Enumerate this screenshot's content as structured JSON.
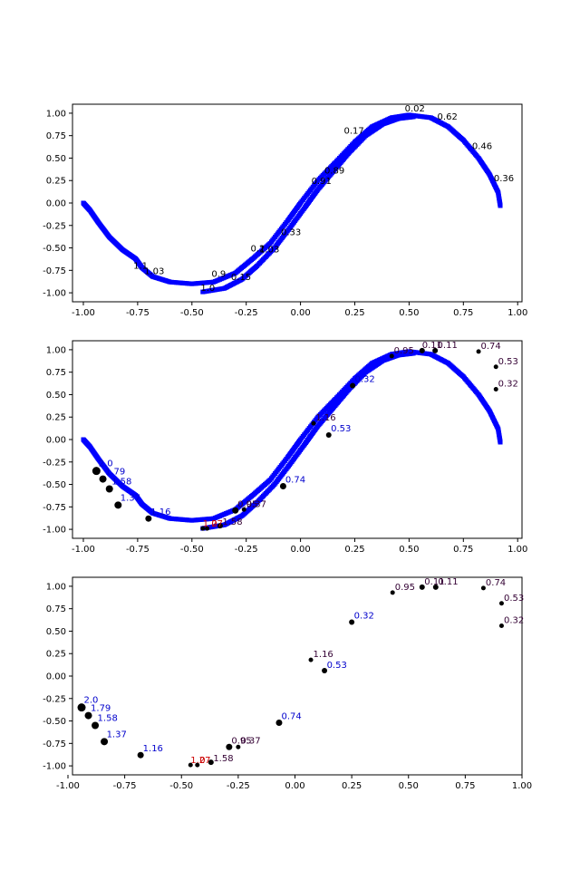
{
  "colors": {
    "curve": "#0000ff",
    "point": "#000000",
    "label_blue": "#0000cc",
    "label_dark": "#330033",
    "label_red": "#cc0000"
  },
  "chart_data": [
    {
      "type": "scatter",
      "xlim": [
        -1.05,
        1.02
      ],
      "ylim": [
        -1.1,
        1.1
      ],
      "xticks": [
        "-1.00",
        "-0.75",
        "-0.50",
        "-0.25",
        "0.00",
        "0.25",
        "0.50",
        "0.75",
        "1.00"
      ],
      "yticks": [
        "-1.00",
        "-0.75",
        "-0.50",
        "-0.25",
        "0.00",
        "0.25",
        "0.50",
        "0.75",
        "1.00"
      ],
      "curve_trace": [
        [
          -1.0,
          0.0
        ],
        [
          -0.97,
          -0.08
        ],
        [
          -0.93,
          -0.22
        ],
        [
          -0.88,
          -0.38
        ],
        [
          -0.82,
          -0.52
        ],
        [
          -0.76,
          -0.62
        ],
        [
          -0.73,
          -0.72
        ],
        [
          -0.68,
          -0.82
        ],
        [
          -0.6,
          -0.88
        ],
        [
          -0.5,
          -0.9
        ],
        [
          -0.4,
          -0.88
        ],
        [
          -0.3,
          -0.78
        ],
        [
          -0.22,
          -0.62
        ],
        [
          -0.14,
          -0.45
        ],
        [
          -0.06,
          -0.2
        ],
        [
          0.0,
          0.0
        ],
        [
          0.08,
          0.25
        ],
        [
          0.16,
          0.45
        ],
        [
          0.25,
          0.68
        ],
        [
          0.33,
          0.85
        ],
        [
          0.42,
          0.95
        ],
        [
          0.5,
          0.98
        ],
        [
          0.6,
          0.95
        ],
        [
          0.68,
          0.85
        ],
        [
          0.75,
          0.7
        ],
        [
          0.82,
          0.5
        ],
        [
          0.87,
          0.32
        ],
        [
          0.91,
          0.12
        ],
        [
          0.92,
          -0.03
        ]
      ],
      "curve_trace_inner": [
        [
          -0.45,
          -0.99
        ],
        [
          -0.35,
          -0.95
        ],
        [
          -0.27,
          -0.85
        ],
        [
          -0.2,
          -0.7
        ],
        [
          -0.12,
          -0.5
        ],
        [
          -0.05,
          -0.28
        ],
        [
          0.02,
          -0.05
        ],
        [
          0.08,
          0.15
        ],
        [
          0.15,
          0.35
        ],
        [
          0.22,
          0.55
        ],
        [
          0.3,
          0.75
        ],
        [
          0.38,
          0.88
        ],
        [
          0.45,
          0.94
        ],
        [
          0.52,
          0.96
        ]
      ],
      "points": [],
      "labels": [
        {
          "x": 0.48,
          "y": 1.02,
          "text": "0.02",
          "color": "#000000"
        },
        {
          "x": 0.63,
          "y": 0.93,
          "text": "0.62",
          "color": "#000000"
        },
        {
          "x": 0.2,
          "y": 0.77,
          "text": "0.17",
          "color": "#000000"
        },
        {
          "x": 0.79,
          "y": 0.6,
          "text": "0.46",
          "color": "#000000"
        },
        {
          "x": 0.11,
          "y": 0.33,
          "text": "0.89",
          "color": "#000000"
        },
        {
          "x": 0.05,
          "y": 0.21,
          "text": "0.91",
          "color": "#000000"
        },
        {
          "x": 0.89,
          "y": 0.24,
          "text": "0.36",
          "color": "#000000"
        },
        {
          "x": -0.09,
          "y": -0.36,
          "text": "0.33",
          "color": "#000000"
        },
        {
          "x": -0.23,
          "y": -0.54,
          "text": "0.2",
          "color": "#000000"
        },
        {
          "x": -0.19,
          "y": -0.55,
          "text": "1.03",
          "color": "#000000"
        },
        {
          "x": -0.77,
          "y": -0.73,
          "text": "1.1",
          "color": "#000000"
        },
        {
          "x": -0.72,
          "y": -0.79,
          "text": "1.03",
          "color": "#000000"
        },
        {
          "x": -0.41,
          "y": -0.82,
          "text": "0.9",
          "color": "#000000"
        },
        {
          "x": -0.32,
          "y": -0.86,
          "text": "0.15",
          "color": "#000000"
        },
        {
          "x": -0.46,
          "y": -0.98,
          "text": "1.0",
          "color": "#000000"
        }
      ]
    },
    {
      "type": "scatter",
      "xlim": [
        -1.05,
        1.02
      ],
      "ylim": [
        -1.1,
        1.1
      ],
      "xticks": [
        "-1.00",
        "-0.75",
        "-0.50",
        "-0.25",
        "0.00",
        "0.25",
        "0.50",
        "0.75",
        "1.00"
      ],
      "yticks": [
        "-1.00",
        "-0.75",
        "-0.50",
        "-0.25",
        "0.00",
        "0.25",
        "0.50",
        "0.75",
        "1.00"
      ],
      "curve_trace": [
        [
          -1.0,
          0.0
        ],
        [
          -0.97,
          -0.08
        ],
        [
          -0.93,
          -0.22
        ],
        [
          -0.88,
          -0.38
        ],
        [
          -0.82,
          -0.52
        ],
        [
          -0.76,
          -0.62
        ],
        [
          -0.73,
          -0.72
        ],
        [
          -0.68,
          -0.82
        ],
        [
          -0.6,
          -0.88
        ],
        [
          -0.5,
          -0.9
        ],
        [
          -0.4,
          -0.88
        ],
        [
          -0.3,
          -0.78
        ],
        [
          -0.22,
          -0.62
        ],
        [
          -0.14,
          -0.45
        ],
        [
          -0.06,
          -0.2
        ],
        [
          0.0,
          0.0
        ],
        [
          0.08,
          0.25
        ],
        [
          0.16,
          0.45
        ],
        [
          0.25,
          0.68
        ],
        [
          0.33,
          0.85
        ],
        [
          0.42,
          0.95
        ],
        [
          0.5,
          0.98
        ],
        [
          0.6,
          0.95
        ],
        [
          0.68,
          0.85
        ],
        [
          0.75,
          0.7
        ],
        [
          0.82,
          0.5
        ],
        [
          0.87,
          0.32
        ],
        [
          0.91,
          0.12
        ],
        [
          0.92,
          -0.03
        ]
      ],
      "curve_trace_inner": [
        [
          -0.45,
          -0.99
        ],
        [
          -0.35,
          -0.95
        ],
        [
          -0.27,
          -0.85
        ],
        [
          -0.2,
          -0.7
        ],
        [
          -0.12,
          -0.5
        ],
        [
          -0.05,
          -0.28
        ],
        [
          0.02,
          -0.05
        ],
        [
          0.08,
          0.15
        ],
        [
          0.15,
          0.35
        ],
        [
          0.22,
          0.55
        ],
        [
          0.3,
          0.75
        ],
        [
          0.38,
          0.88
        ],
        [
          0.45,
          0.94
        ],
        [
          0.52,
          0.96
        ]
      ],
      "points": [
        {
          "x": -0.94,
          "y": -0.35,
          "size": 9
        },
        {
          "x": -0.91,
          "y": -0.44,
          "size": 8
        },
        {
          "x": -0.88,
          "y": -0.55,
          "size": 8
        },
        {
          "x": -0.84,
          "y": -0.73,
          "size": 8
        },
        {
          "x": -0.7,
          "y": -0.88,
          "size": 7
        },
        {
          "x": -0.45,
          "y": -0.99,
          "size": 5
        },
        {
          "x": -0.43,
          "y": -0.99,
          "size": 5
        },
        {
          "x": -0.37,
          "y": -0.96,
          "size": 6
        },
        {
          "x": -0.3,
          "y": -0.79,
          "size": 7
        },
        {
          "x": -0.26,
          "y": -0.78,
          "size": 5
        },
        {
          "x": -0.08,
          "y": -0.52,
          "size": 7
        },
        {
          "x": 0.13,
          "y": 0.05,
          "size": 6
        },
        {
          "x": 0.06,
          "y": 0.18,
          "size": 5
        },
        {
          "x": 0.24,
          "y": 0.6,
          "size": 6
        },
        {
          "x": 0.42,
          "y": 0.93,
          "size": 5
        },
        {
          "x": 0.56,
          "y": 0.99,
          "size": 6
        },
        {
          "x": 0.62,
          "y": 0.99,
          "size": 6
        },
        {
          "x": 0.82,
          "y": 0.98,
          "size": 5
        },
        {
          "x": 0.9,
          "y": 0.81,
          "size": 5
        },
        {
          "x": 0.9,
          "y": 0.56,
          "size": 5
        }
      ],
      "labels": [
        {
          "x": -0.93,
          "y": -0.3,
          "text": "2.0",
          "color": "#0000cc"
        },
        {
          "x": -0.9,
          "y": -0.39,
          "text": "1.79",
          "color": "#0000cc"
        },
        {
          "x": -0.87,
          "y": -0.5,
          "text": "1.58",
          "color": "#0000cc"
        },
        {
          "x": -0.83,
          "y": -0.68,
          "text": "1.37",
          "color": "#0000cc"
        },
        {
          "x": -0.69,
          "y": -0.84,
          "text": "1.16",
          "color": "#0000cc"
        },
        {
          "x": -0.45,
          "y": -0.97,
          "text": "1.27",
          "color": "#cc0000"
        },
        {
          "x": -0.41,
          "y": -0.97,
          "text": "0",
          "color": "#cc0000"
        },
        {
          "x": -0.36,
          "y": -0.95,
          "text": "1.58",
          "color": "#330033"
        },
        {
          "x": -0.29,
          "y": -0.75,
          "text": "0.95",
          "color": "#330033"
        },
        {
          "x": -0.25,
          "y": -0.75,
          "text": "0.37",
          "color": "#330033"
        },
        {
          "x": -0.07,
          "y": -0.48,
          "text": "0.74",
          "color": "#0000cc"
        },
        {
          "x": 0.07,
          "y": 0.21,
          "text": "1.16",
          "color": "#330033"
        },
        {
          "x": 0.14,
          "y": 0.09,
          "text": "0.53",
          "color": "#0000cc"
        },
        {
          "x": 0.25,
          "y": 0.64,
          "text": "0.32",
          "color": "#0000cc"
        },
        {
          "x": 0.43,
          "y": 0.96,
          "text": "0.95",
          "color": "#330033"
        },
        {
          "x": 0.56,
          "y": 1.02,
          "text": "0.11",
          "color": "#330033"
        },
        {
          "x": 0.63,
          "y": 1.02,
          "text": "0.11",
          "color": "#330033"
        },
        {
          "x": 0.83,
          "y": 1.01,
          "text": "0.74",
          "color": "#330033"
        },
        {
          "x": 0.91,
          "y": 0.84,
          "text": "0.53",
          "color": "#330033"
        },
        {
          "x": 0.91,
          "y": 0.59,
          "text": "0.32",
          "color": "#330033"
        }
      ]
    },
    {
      "type": "scatter",
      "xlim": [
        -0.98,
        1.0
      ],
      "ylim": [
        -1.1,
        1.1
      ],
      "xticks": [
        "-1.00",
        "-0.75",
        "-0.50",
        "-0.25",
        "0.00",
        "0.25",
        "0.50",
        "0.75",
        "1.00"
      ],
      "yticks": [
        "-1.00",
        "-0.75",
        "-0.50",
        "-0.25",
        "0.00",
        "0.25",
        "0.50",
        "0.75",
        "1.00"
      ],
      "curve_trace": [],
      "curve_trace_inner": [],
      "points": [
        {
          "x": -0.94,
          "y": -0.35,
          "size": 9
        },
        {
          "x": -0.91,
          "y": -0.44,
          "size": 8
        },
        {
          "x": -0.88,
          "y": -0.55,
          "size": 8
        },
        {
          "x": -0.84,
          "y": -0.73,
          "size": 8
        },
        {
          "x": -0.68,
          "y": -0.88,
          "size": 7
        },
        {
          "x": -0.46,
          "y": -0.99,
          "size": 5
        },
        {
          "x": -0.43,
          "y": -0.99,
          "size": 5
        },
        {
          "x": -0.37,
          "y": -0.96,
          "size": 6
        },
        {
          "x": -0.29,
          "y": -0.79,
          "size": 7
        },
        {
          "x": -0.25,
          "y": -0.79,
          "size": 5
        },
        {
          "x": -0.07,
          "y": -0.52,
          "size": 7
        },
        {
          "x": 0.13,
          "y": 0.06,
          "size": 6
        },
        {
          "x": 0.07,
          "y": 0.18,
          "size": 5
        },
        {
          "x": 0.25,
          "y": 0.6,
          "size": 6
        },
        {
          "x": 0.43,
          "y": 0.93,
          "size": 5
        },
        {
          "x": 0.56,
          "y": 0.99,
          "size": 6
        },
        {
          "x": 0.62,
          "y": 0.99,
          "size": 6
        },
        {
          "x": 0.83,
          "y": 0.98,
          "size": 5
        },
        {
          "x": 0.91,
          "y": 0.81,
          "size": 5
        },
        {
          "x": 0.91,
          "y": 0.56,
          "size": 5
        }
      ],
      "labels": [
        {
          "x": -0.93,
          "y": -0.3,
          "text": "2.0",
          "color": "#0000cc"
        },
        {
          "x": -0.9,
          "y": -0.39,
          "text": "1.79",
          "color": "#0000cc"
        },
        {
          "x": -0.87,
          "y": -0.5,
          "text": "1.58",
          "color": "#0000cc"
        },
        {
          "x": -0.83,
          "y": -0.68,
          "text": "1.37",
          "color": "#0000cc"
        },
        {
          "x": -0.67,
          "y": -0.84,
          "text": "1.16",
          "color": "#0000cc"
        },
        {
          "x": -0.46,
          "y": -0.97,
          "text": "1.27",
          "color": "#cc0000"
        },
        {
          "x": -0.42,
          "y": -0.97,
          "text": "0",
          "color": "#cc0000"
        },
        {
          "x": -0.36,
          "y": -0.95,
          "text": "1.58",
          "color": "#330033"
        },
        {
          "x": -0.28,
          "y": -0.75,
          "text": "0.95",
          "color": "#330033"
        },
        {
          "x": -0.24,
          "y": -0.75,
          "text": "0.37",
          "color": "#330033"
        },
        {
          "x": -0.06,
          "y": -0.48,
          "text": "0.74",
          "color": "#0000cc"
        },
        {
          "x": 0.08,
          "y": 0.21,
          "text": "1.16",
          "color": "#330033"
        },
        {
          "x": 0.14,
          "y": 0.09,
          "text": "0.53",
          "color": "#0000cc"
        },
        {
          "x": 0.26,
          "y": 0.64,
          "text": "0.32",
          "color": "#0000cc"
        },
        {
          "x": 0.44,
          "y": 0.96,
          "text": "0.95",
          "color": "#330033"
        },
        {
          "x": 0.57,
          "y": 1.02,
          "text": "0.11",
          "color": "#330033"
        },
        {
          "x": 0.63,
          "y": 1.02,
          "text": "0.11",
          "color": "#330033"
        },
        {
          "x": 0.84,
          "y": 1.01,
          "text": "0.74",
          "color": "#330033"
        },
        {
          "x": 0.92,
          "y": 0.84,
          "text": "0.53",
          "color": "#330033"
        },
        {
          "x": 0.92,
          "y": 0.59,
          "text": "0.32",
          "color": "#330033"
        }
      ]
    }
  ]
}
